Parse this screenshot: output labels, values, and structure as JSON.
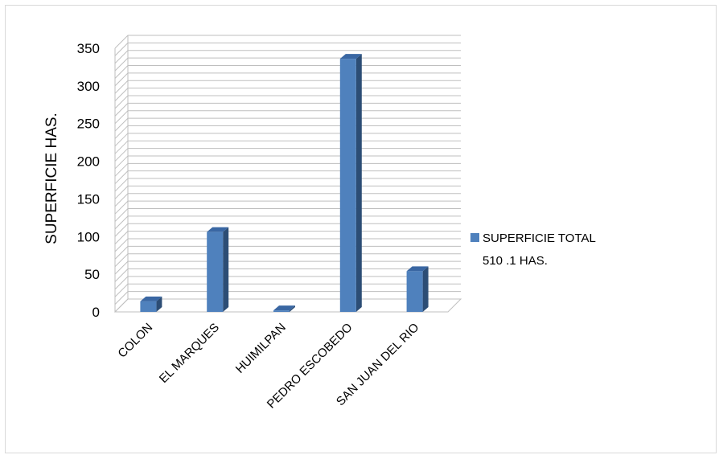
{
  "chart_data": {
    "type": "bar",
    "title": "",
    "xlabel": "",
    "ylabel": "SUPERFICIE HAS.",
    "categories": [
      "COLON",
      "EL MARQUES",
      "HUIMILPAN",
      "PEDRO ESCOBEDO",
      "SAN JUAN DEL RIO"
    ],
    "series": [
      {
        "name": "SUPERFICIE  TOTAL 510 .1 HAS.",
        "values": [
          14,
          106,
          2,
          336,
          54
        ],
        "color": "#4f81bd"
      }
    ],
    "legend_lines": [
      "SUPERFICIE  TOTAL",
      "510 .1 HAS."
    ],
    "yticks": [
      0,
      50,
      100,
      150,
      200,
      250,
      300,
      350
    ],
    "ylim": [
      0,
      350
    ],
    "grid": true,
    "minor_grid_step": 10,
    "legend_position": "right",
    "style": "3d-column"
  }
}
